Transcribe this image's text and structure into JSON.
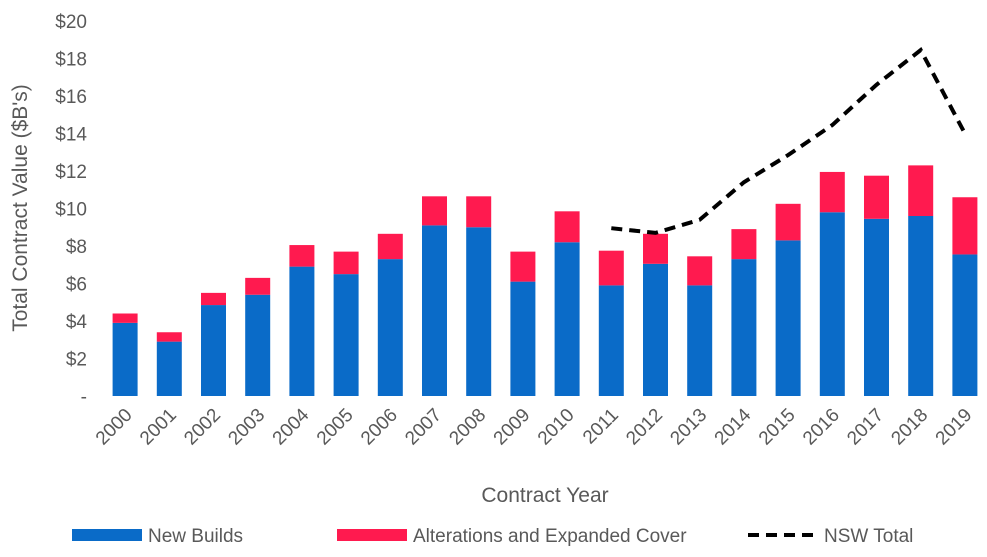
{
  "chart_data": {
    "type": "stacked-bar-line",
    "y_label": "Total Contract Value ($B's)",
    "x_label": "Contract Year",
    "categories": [
      "2000",
      "2001",
      "2002",
      "2003",
      "2004",
      "2005",
      "2006",
      "2007",
      "2008",
      "2009",
      "2010",
      "2011",
      "2012",
      "2013",
      "2014",
      "2015",
      "2016",
      "2017",
      "2018",
      "2019"
    ],
    "series": [
      {
        "name": "New Builds",
        "color": "#0a6bc8",
        "kind": "bar",
        "values": [
          3.9,
          2.9,
          4.85,
          5.4,
          6.9,
          6.5,
          7.3,
          9.1,
          9.0,
          6.1,
          8.2,
          5.9,
          7.05,
          5.9,
          7.3,
          8.3,
          9.8,
          9.45,
          9.6,
          7.55
        ]
      },
      {
        "name": "Alterations and Expanded Cover",
        "color": "#ff1a4f",
        "kind": "bar",
        "values": [
          0.5,
          0.5,
          0.65,
          0.9,
          1.15,
          1.2,
          1.35,
          1.55,
          1.65,
          1.6,
          1.65,
          1.85,
          1.6,
          1.55,
          1.6,
          1.95,
          2.15,
          2.3,
          2.7,
          3.05
        ]
      },
      {
        "name": "NSW Total",
        "color": "#000000",
        "kind": "line",
        "values": [
          null,
          null,
          null,
          null,
          null,
          null,
          null,
          null,
          null,
          null,
          null,
          8.95,
          8.7,
          9.4,
          11.4,
          12.85,
          14.45,
          16.6,
          18.45,
          14.0
        ]
      }
    ],
    "ylim": [
      0,
      20
    ],
    "yticks": [
      {
        "value": 0,
        "label": "-"
      },
      {
        "value": 2,
        "label": "$2"
      },
      {
        "value": 4,
        "label": "$4"
      },
      {
        "value": 6,
        "label": "$6"
      },
      {
        "value": 8,
        "label": "$8"
      },
      {
        "value": 10,
        "label": "$10"
      },
      {
        "value": 12,
        "label": "$12"
      },
      {
        "value": 14,
        "label": "$14"
      },
      {
        "value": 16,
        "label": "$16"
      },
      {
        "value": 18,
        "label": "$18"
      },
      {
        "value": 20,
        "label": "$20"
      }
    ],
    "legend": "bottom"
  }
}
